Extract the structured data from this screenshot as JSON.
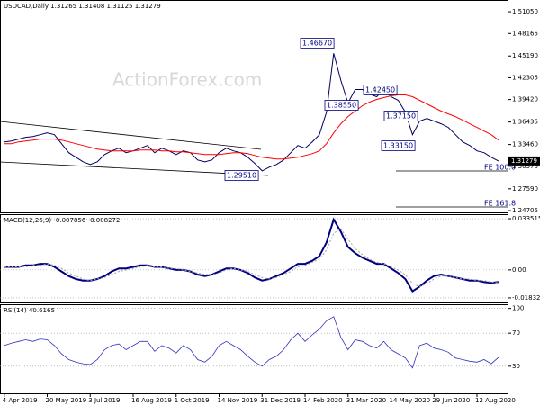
{
  "chart_data": [
    {
      "type": "line",
      "title": "USDCAD,Daily 1.31265 1.31408 1.31125 1.31279",
      "watermark": "ActionForex.com",
      "series": [
        {
          "color": "#000060",
          "values": [
            1.3381,
            1.3393,
            1.3417,
            1.3441,
            1.3452,
            1.3476,
            1.35,
            1.3476,
            1.3357,
            1.3237,
            1.3177,
            1.3117,
            1.3081,
            1.3117,
            1.3213,
            1.3261,
            1.3297,
            1.3237,
            1.3261,
            1.3297,
            1.3333,
            1.3237,
            1.3297,
            1.3261,
            1.3213,
            1.3261,
            1.3237,
            1.3141,
            1.3117,
            1.3141,
            1.3237,
            1.3297,
            1.3261,
            1.3237,
            1.3177,
            1.3093,
            1.2997,
            1.3045,
            1.3081,
            1.3141,
            1.3237,
            1.3333,
            1.3297,
            1.3381,
            1.3476,
            1.3776,
            1.4554,
            1.4195,
            1.3896,
            1.4075,
            1.4075,
            1.4015,
            1.3979,
            1.4075,
            1.3979,
            1.3931,
            1.3776,
            1.3476,
            1.3656,
            1.3692,
            1.3656,
            1.362,
            1.3572,
            1.3476,
            1.3381,
            1.3333,
            1.3261,
            1.3237,
            1.3177,
            1.31279
          ]
        },
        {
          "color": "#ff0000",
          "values": [
            1.3357,
            1.3357,
            1.3381,
            1.3393,
            1.3405,
            1.3417,
            1.3417,
            1.3417,
            1.3405,
            1.3381,
            1.3357,
            1.3333,
            1.3309,
            1.3285,
            1.3273,
            1.3261,
            1.3261,
            1.3261,
            1.3261,
            1.3273,
            1.3273,
            1.3273,
            1.3261,
            1.3261,
            1.3249,
            1.3249,
            1.3237,
            1.3225,
            1.3213,
            1.3213,
            1.3213,
            1.3225,
            1.3237,
            1.3237,
            1.3225,
            1.3201,
            1.3177,
            1.3165,
            1.3153,
            1.3153,
            1.3165,
            1.3177,
            1.3201,
            1.3225,
            1.3261,
            1.3357,
            1.35,
            1.362,
            1.3716,
            1.3788,
            1.386,
            1.3908,
            1.3943,
            1.3967,
            1.3991,
            1.4003,
            1.4003,
            1.3979,
            1.3931,
            1.3884,
            1.3836,
            1.3788,
            1.3752,
            1.3716,
            1.3668,
            1.362,
            1.3572,
            1.3524,
            1.3476,
            1.3405
          ]
        }
      ],
      "annotations": [
        "1.46670",
        "1.38550",
        "1.42450",
        "1.37150",
        "1.33150",
        "1.29510",
        "FE 100.0",
        "FE 161.8"
      ],
      "xlim": [
        -0.6,
        70.4
      ],
      "ylim": [
        1.2447,
        1.5249
      ],
      "yticks": [
        {
          "value": 1.5105,
          "label": "1.51050"
        },
        1.48165,
        {
          "value": 1.4519,
          "label": "1.45190"
        },
        1.42305,
        {
          "value": 1.3942,
          "label": "1.39420"
        },
        1.36435,
        {
          "value": 1.3346,
          "label": "1.33460"
        },
        {
          "value": 1.3057,
          "label": "1.30570"
        },
        {
          "value": 1.2759,
          "label": "1.27590"
        },
        1.24705
      ],
      "grid": false
    },
    {
      "type": "line",
      "title": "MACD(12,26,9) -0.007856 -0.008272",
      "series": [
        {
          "color": "#000080",
          "values": [
            0.002,
            0.002,
            0.002,
            0.003,
            0.003,
            0.004,
            0.004,
            0.002,
            -0.001,
            -0.004,
            -0.006,
            -0.007,
            -0.007,
            -0.006,
            -0.004,
            -0.001,
            0.001,
            0.001,
            0.002,
            0.003,
            0.003,
            0.002,
            0.002,
            0.001,
            0,
            0,
            -0.001,
            -0.003,
            -0.004,
            -0.003,
            -0.001,
            0.001,
            0.001,
            0,
            -0.002,
            -0.005,
            -0.007,
            -0.006,
            -0.004,
            -0.002,
            0.001,
            0.004,
            0.004,
            0.006,
            0.009,
            0.018,
            0.033,
            0.025,
            0.015,
            0.011,
            0.008,
            0.006,
            0.004,
            0.004,
            0.001,
            -0.002,
            -0.006,
            -0.014,
            -0.011,
            -0.007,
            -0.004,
            -0.003,
            -0.004,
            -0.005,
            -0.006,
            -0.007,
            -0.007,
            -0.008,
            -0.0085,
            -0.007856
          ]
        },
        {
          "color": "#a0a0a0",
          "values": [
            0.002,
            0.002,
            0.002,
            0.002,
            0.003,
            0.003,
            0.004,
            0.003,
            0.001,
            -0.002,
            -0.004,
            -0.006,
            -0.007,
            -0.006,
            -0.005,
            -0.003,
            -0.001,
            0,
            0.001,
            0.002,
            0.003,
            0.002,
            0.002,
            0.001,
            0.001,
            0,
            -0.001,
            -0.002,
            -0.003,
            -0.003,
            -0.002,
            0,
            0.001,
            0,
            -0.001,
            -0.003,
            -0.005,
            -0.006,
            -0.005,
            -0.003,
            -0.001,
            0.002,
            0.003,
            0.005,
            0.007,
            0.013,
            0.024,
            0.027,
            0.02,
            0.014,
            0.01,
            0.007,
            0.005,
            0.004,
            0.002,
            0,
            -0.003,
            -0.009,
            -0.011,
            -0.009,
            -0.006,
            -0.004,
            -0.004,
            -0.005,
            -0.006,
            -0.006,
            -0.007,
            -0.007,
            -0.008,
            -0.008272
          ]
        }
      ],
      "xlim": [
        -0.6,
        70.4
      ],
      "ylim": [
        -0.0219,
        0.0359
      ],
      "yticks": [
        0.033515,
        {
          "value": 0,
          "label": "0.00"
        },
        -0.018324
      ],
      "grid": true
    },
    {
      "type": "line",
      "title": "RSI(14) 40.6165",
      "series": [
        {
          "color": "#3030c0",
          "values": [
            55,
            58,
            60,
            62,
            60,
            63,
            62,
            55,
            45,
            38,
            35,
            33,
            32,
            38,
            50,
            55,
            57,
            50,
            55,
            60,
            60,
            48,
            55,
            52,
            46,
            55,
            50,
            38,
            35,
            42,
            55,
            60,
            55,
            50,
            42,
            35,
            30,
            38,
            42,
            50,
            62,
            70,
            60,
            68,
            75,
            85,
            90,
            65,
            50,
            62,
            60,
            55,
            52,
            60,
            50,
            45,
            40,
            28,
            55,
            58,
            52,
            50,
            47,
            40,
            38,
            36,
            35,
            38,
            33,
            40.6165
          ]
        }
      ],
      "xlim": [
        -0.6,
        70.4
      ],
      "ylim": [
        -4,
        104
      ],
      "yticks": [
        100,
        70,
        30
      ],
      "xticks": [
        {
          "value": 0,
          "label": "4 Apr 2019"
        },
        {
          "value": 6,
          "label": "20 May 2019"
        },
        {
          "value": 12,
          "label": "3 Jul 2019"
        },
        {
          "value": 18,
          "label": "16 Aug 2019"
        },
        {
          "value": 24,
          "label": "1 Oct 2019"
        },
        {
          "value": 30,
          "label": "14 Nov 2019"
        },
        {
          "value": 36,
          "label": "31 Dec 2019"
        },
        {
          "value": 42,
          "label": "14 Feb 2020"
        },
        {
          "value": 48,
          "label": "31 Mar 2020"
        },
        {
          "value": 54,
          "label": "14 May 2020"
        },
        {
          "value": 60,
          "label": "29 Jun 2020"
        },
        {
          "value": 66,
          "label": "12 Aug 2020"
        }
      ],
      "grid": true
    }
  ]
}
